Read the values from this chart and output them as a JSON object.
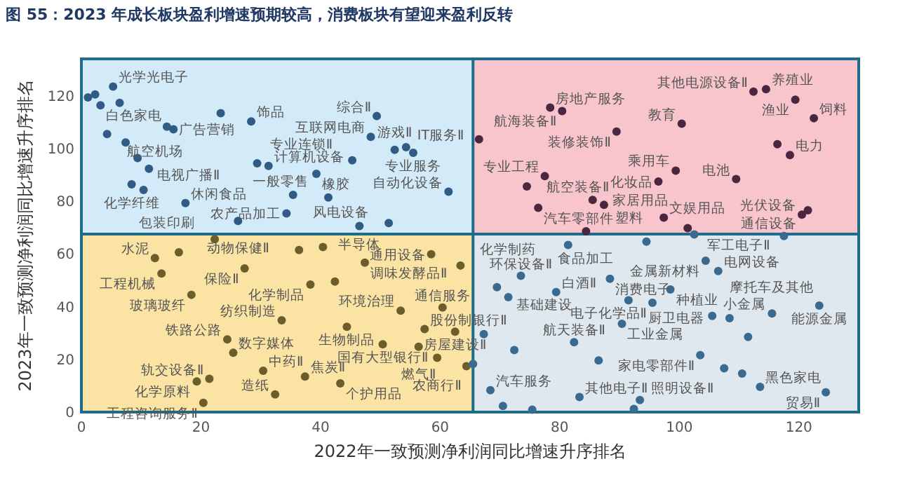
{
  "chart_data": {
    "type": "scatter",
    "title": "图 55：2023 年成长板块盈利增速预期较高，消费板块有望迎来盈利反转",
    "xlabel": "2022年一致预测净利润同比增速升序排名",
    "ylabel": "2023年一致预测净利润同比增速升序排名",
    "xlim": [
      0,
      130
    ],
    "ylim": [
      0,
      134
    ],
    "xticks": [
      0,
      20,
      40,
      60,
      80,
      100,
      120
    ],
    "yticks": [
      0,
      20,
      40,
      60,
      80,
      100,
      120
    ],
    "grid": false,
    "marker": "circle",
    "ref_lines": [
      {
        "axis": "x",
        "value": 65.5,
        "color": "#1f6b8a"
      },
      {
        "axis": "y",
        "value": 67.5,
        "color": "#1f6b8a"
      }
    ],
    "series": [
      {
        "color": "#2f5b85",
        "x": [
          1.1,
          2.3,
          5.3,
          3.2,
          6.4,
          4.3,
          7.4,
          23.3,
          28.4,
          14.3,
          15.4,
          9.4,
          11.3,
          8.4,
          10.4,
          17.4,
          29.4,
          31.3,
          39.3,
          35.4,
          41.3,
          34.3,
          26.2,
          49.4,
          48.4,
          52.4,
          54.3,
          55.5,
          45.3,
          61.4,
          46.5,
          51.4
        ],
        "values": [
          119.4,
          120.5,
          123.5,
          116.4,
          117.3,
          105.5,
          102.3,
          113.4,
          110.3,
          108.3,
          107.3,
          96.4,
          92.3,
          86.4,
          84.3,
          79.3,
          94.4,
          93.4,
          90.4,
          82.4,
          81.4,
          75.4,
          72.5,
          112.3,
          104.4,
          99.5,
          100.5,
          98.4,
          95.5,
          83.6,
          70.6,
          71.7
        ],
        "value_labels": [
          null,
          null,
          "光学光电子",
          "白色家电",
          null,
          "航空机场",
          null,
          null,
          "饰品",
          null,
          "广告营销",
          "电视广播Ⅱ",
          null,
          "化学纤维",
          null,
          "休闲食品",
          null,
          "计算机设备",
          "橡胶",
          "风电设备",
          "一般零售",
          "农产品加工",
          "动物保健Ⅱ",
          "综合Ⅱ",
          "互联网电商",
          "游戏Ⅱ",
          "IT服务Ⅱ",
          "专业服务",
          "专业连锁Ⅱ",
          "自动化设备",
          "半导体",
          null
        ]
      },
      {
        "color": "#4a2640",
        "x": [
          66.5,
          78.4,
          80.4,
          77.5,
          74.5,
          76.4,
          85.5,
          84.4,
          89.5,
          100.4,
          112.4,
          114.5,
          119.4,
          122.5,
          116.4,
          118.5,
          99.4,
          96.5,
          109.5,
          87.4,
          97.4,
          101.4,
          120.5,
          121.5
        ],
        "values": [
          103.5,
          115.5,
          114.2,
          89.5,
          85.6,
          77.5,
          80.5,
          68.6,
          106.4,
          109.4,
          121.6,
          122.5,
          118.5,
          111.5,
          101.6,
          97.5,
          91.6,
          87.5,
          88.4,
          78.6,
          73.8,
          69.8,
          74.9,
          76.6
        ],
        "value_labels": [
          null,
          "房地产服务",
          "航海装备Ⅱ",
          "专业工程",
          "航空装备Ⅱ",
          "汽车零部件",
          "家居用品",
          "食品加工",
          "装修装饰Ⅱ",
          "教育",
          "其他电源设备Ⅱ",
          "养殖业",
          "渔业",
          "饲料",
          null,
          "电力",
          "乘用车",
          "化妆品",
          "电池",
          "塑料",
          "文娱用品",
          "军工电子Ⅱ",
          "光伏设备",
          "通信设备"
        ]
      },
      {
        "color": "#6b5e2a",
        "x": [
          22.3,
          12.3,
          16.3,
          13.4,
          27.3,
          18.4,
          33.5,
          24.4,
          25.4,
          30.4,
          37.4,
          21.4,
          19.3,
          32.4,
          20.4,
          36.4,
          40.4,
          38.3,
          42.4,
          47.4,
          58.5,
          63.4,
          53.4,
          60.4,
          44.4,
          57.4,
          62.5,
          50.4,
          56.4,
          59.5,
          64.4,
          43.3
        ],
        "values": [
          65.6,
          58.4,
          60.6,
          52.6,
          54.5,
          44.5,
          34.8,
          27.6,
          22.5,
          15.7,
          13.5,
          12.6,
          11.6,
          6.7,
          3.5,
          61.5,
          62.6,
          48.4,
          49.5,
          56.7,
          59.9,
          55.6,
          38.5,
          39.7,
          32.4,
          31.5,
          30.5,
          25.7,
          24.8,
          20.6,
          17.4,
          10.9
        ],
        "value_labels": [
          "包装印刷",
          "水泥",
          null,
          "工程机械",
          "保险Ⅱ",
          "玻璃玻纤",
          "纺织制造",
          "铁路公路",
          "数字媒体",
          "中药Ⅱ",
          "焦炭Ⅱ",
          "轨交设备Ⅱ",
          "化学原料",
          "造纸",
          "工程咨询服务Ⅱ",
          null,
          null,
          "化学制品",
          null,
          "调味发酵品Ⅱ",
          "通用设备",
          "化学制药",
          "环境治理",
          "通信服务",
          "生物制品",
          "股份制银行Ⅱ",
          "房屋建设Ⅱ",
          "国有大型银行Ⅱ",
          "燃气Ⅱ",
          "农商行Ⅱ",
          null,
          "个护用品"
        ]
      },
      {
        "color": "#3a6a90",
        "x": [
          65.5,
          81.4,
          73.5,
          69.5,
          71.4,
          79.4,
          67.3,
          72.4,
          82.4,
          86.5,
          68.4,
          70.5,
          83.3,
          75.4,
          94.5,
          102.5,
          117.5,
          104.4,
          106.5,
          88.4,
          98.5,
          91.5,
          95.5,
          90.4,
          105.5,
          108.4,
          115.5,
          123.4,
          111.5,
          103.5,
          107.5,
          110.5,
          113.5,
          124.5,
          93.4,
          92.4
        ],
        "values": [
          18.3,
          63.4,
          51.7,
          47.4,
          43.6,
          45.5,
          29.6,
          23.5,
          26.5,
          19.6,
          8.3,
          2.3,
          5.7,
          0.9,
          64.7,
          67.4,
          66.8,
          57.4,
          53.5,
          50.6,
          46.5,
          42.4,
          41.5,
          33.5,
          36.5,
          35.6,
          37.4,
          40.4,
          28.5,
          21.6,
          16.6,
          14.6,
          9.6,
          7.5,
          4.6,
          1.2
        ],
        "value_labels": [
          null,
          null,
          "环保设备Ⅱ",
          "基础建设",
          null,
          "白酒Ⅱ",
          null,
          null,
          "航天装备Ⅱ",
          null,
          "汽车服务",
          null,
          "其他电子Ⅱ",
          null,
          null,
          null,
          null,
          "金属新材料",
          "电网设备",
          "消费电子",
          "种植业",
          "厨卫电器",
          "电子化学品Ⅱ",
          "工业金属",
          "小金属",
          null,
          "摩托车及其他",
          "能源金属",
          null,
          "家电零部件Ⅱ",
          null,
          null,
          "黑色家电",
          "贸易Ⅱ",
          "照明设备Ⅱ",
          null
        ]
      }
    ]
  }
}
